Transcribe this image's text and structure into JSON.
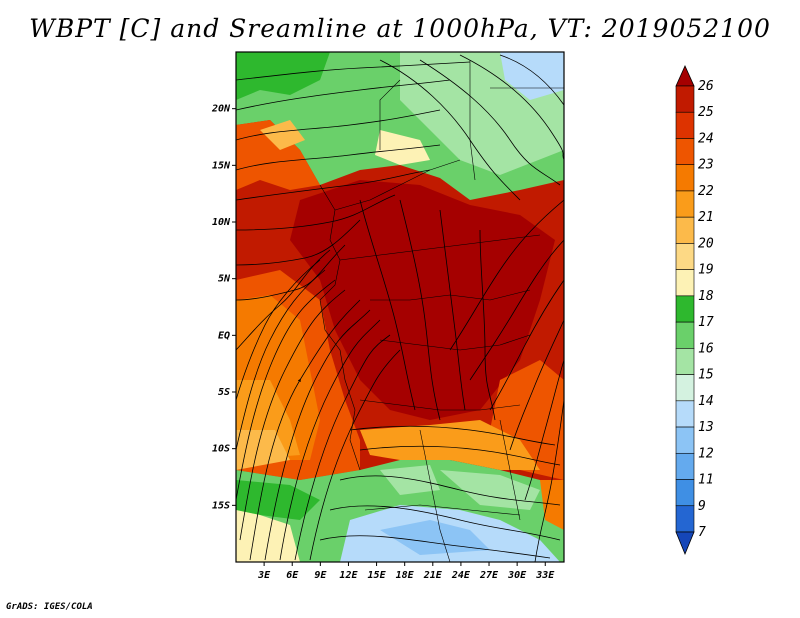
{
  "title": "WBPT [C] and Sreamline at 1000hPa, VT: 2019052100",
  "credit": "GrADS: IGES/COLA",
  "map": {
    "lat_labels": [
      "20N",
      "15N",
      "10N",
      "5N",
      "EQ",
      "5S",
      "10S",
      "15S"
    ],
    "lat_values": [
      20,
      15,
      10,
      5,
      0,
      -5,
      -10,
      -15
    ],
    "lon_labels": [
      "3E",
      "6E",
      "9E",
      "12E",
      "15E",
      "18E",
      "21E",
      "24E",
      "27E",
      "30E",
      "33E"
    ],
    "lon_values": [
      3,
      6,
      9,
      12,
      15,
      18,
      21,
      24,
      27,
      30,
      33
    ],
    "lon_range": [
      0,
      35
    ],
    "lat_range": [
      -20,
      25
    ]
  },
  "colorbar": {
    "labels": [
      "26",
      "25",
      "24",
      "23",
      "22",
      "21",
      "20",
      "19",
      "18",
      "17",
      "16",
      "15",
      "14",
      "13",
      "12",
      "11",
      "9",
      "7"
    ],
    "colors": [
      "#a50000",
      "#c11a00",
      "#dd3300",
      "#ee5500",
      "#f57a00",
      "#fa9c1a",
      "#fcba4a",
      "#fdd985",
      "#fdf2b5",
      "#2eb82e",
      "#6ad06a",
      "#a4e4a4",
      "#d4f2e0",
      "#b6dbfa",
      "#8cc4f5",
      "#64aaee",
      "#3f8fe4",
      "#2466d2",
      "#1546b8"
    ]
  }
}
